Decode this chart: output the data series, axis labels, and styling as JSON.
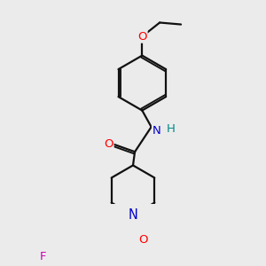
{
  "bg_color": "#ebebeb",
  "bond_color": "#111111",
  "bond_lw": 1.6,
  "atom_colors": {
    "O": "#ff0000",
    "N": "#0000cc",
    "F": "#cc00bb",
    "H": "#008888"
  },
  "font_size": 9.5
}
